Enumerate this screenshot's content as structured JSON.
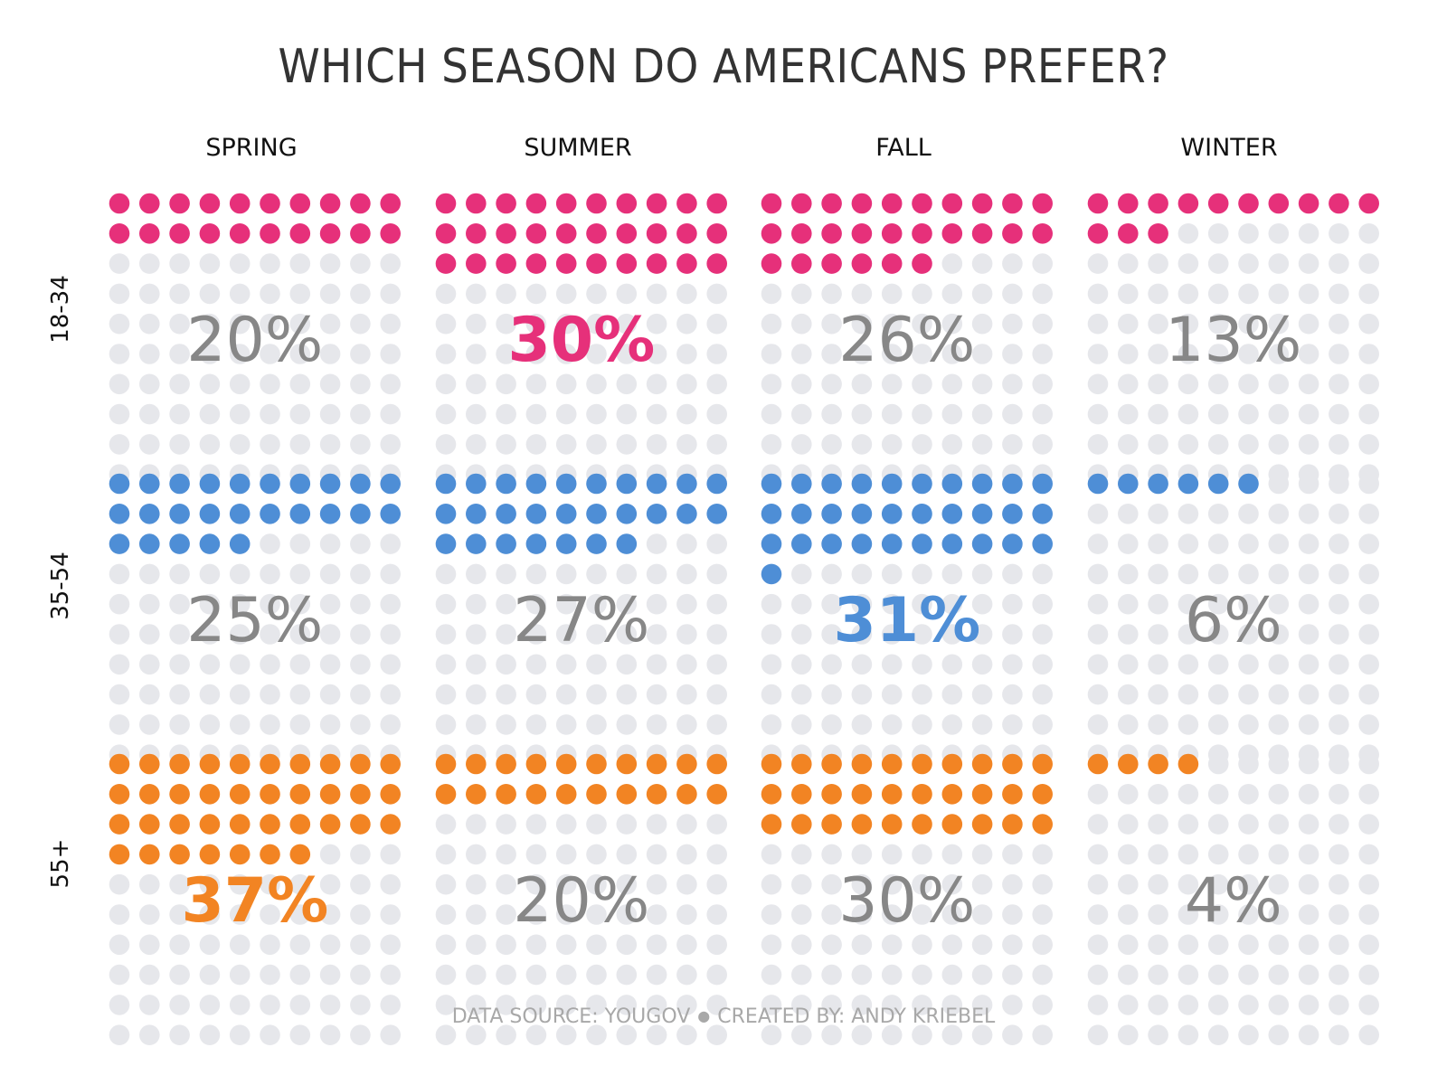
{
  "title": "WHICH SEASON DO AMERICANS PREFER?",
  "footer": {
    "source": "DATA SOURCE: YOUGOV",
    "separator": "●",
    "credit": "CREATED BY: ANDY KRIEBEL"
  },
  "colors": {
    "empty_dot": "#e6e7eb",
    "label_default": "#878787",
    "row_18_34": "#e6307a",
    "row_35_54": "#4e8ed6",
    "row_55_plus": "#f28423"
  },
  "chart_data": {
    "type": "waffle",
    "title": "WHICH SEASON DO AMERICANS PREFER?",
    "categories": [
      "SPRING",
      "SUMMER",
      "FALL",
      "WINTER"
    ],
    "grid": "10x10 dots per cell (100 = 100%)",
    "series": [
      {
        "name": "18-34",
        "color": "#e6307a",
        "values": [
          20,
          30,
          26,
          13
        ],
        "highlight": "SUMMER"
      },
      {
        "name": "35-54",
        "color": "#4e8ed6",
        "values": [
          25,
          27,
          31,
          6
        ],
        "highlight": "FALL"
      },
      {
        "name": "55+",
        "color": "#f28423",
        "values": [
          37,
          20,
          30,
          4
        ],
        "highlight": "SPRING"
      }
    ]
  }
}
